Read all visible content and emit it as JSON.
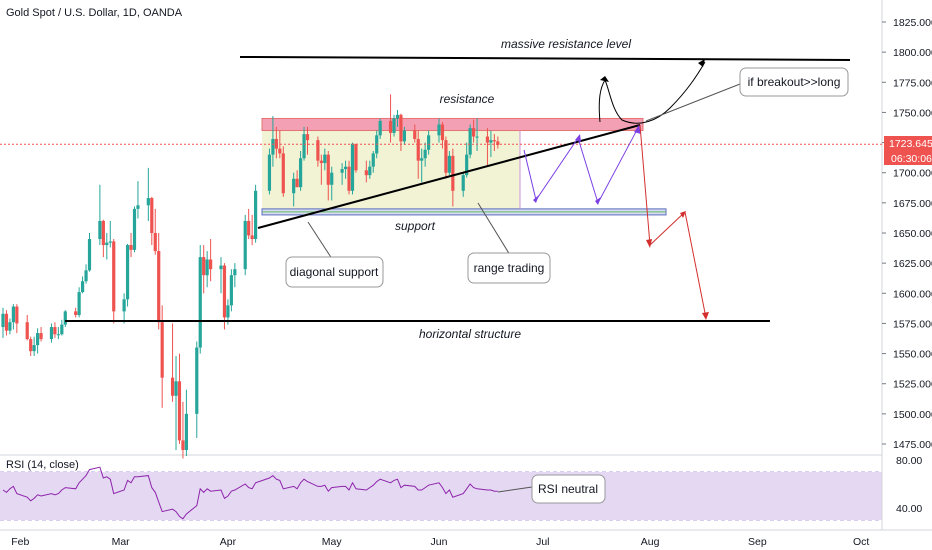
{
  "header": {
    "title": "Gold Spot / U.S. Dollar, 1D, OANDA"
  },
  "price_axis": {
    "ticks": [
      "1825.000",
      "1800.000",
      "1775.000",
      "1750.000",
      "1725.000",
      "1700.000",
      "1675.000",
      "1650.000",
      "1625.000",
      "1600.000",
      "1575.000",
      "1550.000",
      "1525.000",
      "1500.000",
      "1475.000"
    ],
    "current_price": "1723.645",
    "countdown": "06:30:06",
    "range": [
      1464,
      1840
    ]
  },
  "rsi_pane": {
    "label": "RSI (14, close)",
    "ticks": [
      "80.00",
      "40.00"
    ],
    "band": [
      30,
      70
    ]
  },
  "time_axis": {
    "labels": [
      "Feb",
      "Mar",
      "Apr",
      "May",
      "Jun",
      "Jul",
      "Aug",
      "Sep",
      "Oct"
    ],
    "start_date": "2020-01-27",
    "end_date": "2020-10-05"
  },
  "annotations": {
    "massive_resistance": "massive resistance level",
    "resistance": "resistance",
    "support": "support",
    "horizontal_structure": "horizontal structure",
    "diagonal_support": "diagonal support",
    "range_trading": "range trading",
    "breakout": "if breakout>>long",
    "rsi_neutral": "RSI neutral"
  },
  "colors": {
    "up": "#26a69a",
    "down": "#ef5350",
    "dark": "#000000",
    "resistance_zone": "#f4a0b4",
    "range_box": "#f1f3d4",
    "support_zone": "#d5dcef",
    "rsi_band": "#e4d8f3",
    "rsi_line": "#8e24aa",
    "price_line": "#ef5350",
    "purple_path": "#7b3fe4",
    "red_path": "#d32f2f"
  },
  "chart_data": {
    "type": "candlestick",
    "title": "Gold Spot / U.S. Dollar, 1D, OANDA",
    "ylim": [
      1464,
      1840
    ],
    "candles": [
      {
        "date": "2020-01-27",
        "o": 1572,
        "h": 1588,
        "l": 1563,
        "c": 1583
      },
      {
        "date": "2020-01-28",
        "o": 1583,
        "h": 1586,
        "l": 1565,
        "c": 1569
      },
      {
        "date": "2020-01-29",
        "o": 1569,
        "h": 1579,
        "l": 1566,
        "c": 1576
      },
      {
        "date": "2020-01-30",
        "o": 1576,
        "h": 1591,
        "l": 1570,
        "c": 1589
      },
      {
        "date": "2020-01-31",
        "o": 1589,
        "h": 1591,
        "l": 1567,
        "c": 1575
      },
      {
        "date": "2020-02-03",
        "o": 1576,
        "h": 1582,
        "l": 1561,
        "c": 1562
      },
      {
        "date": "2020-02-04",
        "o": 1562,
        "h": 1564,
        "l": 1548,
        "c": 1552
      },
      {
        "date": "2020-02-05",
        "o": 1552,
        "h": 1564,
        "l": 1548,
        "c": 1557
      },
      {
        "date": "2020-02-06",
        "o": 1557,
        "h": 1571,
        "l": 1550,
        "c": 1567
      },
      {
        "date": "2020-02-07",
        "o": 1567,
        "h": 1572,
        "l": 1560,
        "c": 1562
      },
      {
        "date": "2020-02-10",
        "o": 1562,
        "h": 1575,
        "l": 1559,
        "c": 1572
      },
      {
        "date": "2020-02-11",
        "o": 1572,
        "h": 1576,
        "l": 1563,
        "c": 1566
      },
      {
        "date": "2020-02-12",
        "o": 1566,
        "h": 1572,
        "l": 1562,
        "c": 1566
      },
      {
        "date": "2020-02-13",
        "o": 1566,
        "h": 1578,
        "l": 1565,
        "c": 1574
      },
      {
        "date": "2020-02-14",
        "o": 1574,
        "h": 1586,
        "l": 1572,
        "c": 1585
      },
      {
        "date": "2020-02-17",
        "o": 1585,
        "h": 1588,
        "l": 1580,
        "c": 1582
      },
      {
        "date": "2020-02-18",
        "o": 1582,
        "h": 1605,
        "l": 1580,
        "c": 1601
      },
      {
        "date": "2020-02-19",
        "o": 1601,
        "h": 1614,
        "l": 1600,
        "c": 1610
      },
      {
        "date": "2020-02-20",
        "o": 1610,
        "h": 1624,
        "l": 1608,
        "c": 1619
      },
      {
        "date": "2020-02-21",
        "o": 1619,
        "h": 1650,
        "l": 1618,
        "c": 1645
      },
      {
        "date": "2020-02-24",
        "o": 1645,
        "h": 1690,
        "l": 1640,
        "c": 1660
      },
      {
        "date": "2020-02-25",
        "o": 1660,
        "h": 1661,
        "l": 1630,
        "c": 1640
      },
      {
        "date": "2020-02-26",
        "o": 1640,
        "h": 1650,
        "l": 1628,
        "c": 1642
      },
      {
        "date": "2020-02-27",
        "o": 1642,
        "h": 1660,
        "l": 1638,
        "c": 1643
      },
      {
        "date": "2020-02-28",
        "o": 1643,
        "h": 1645,
        "l": 1575,
        "c": 1585
      },
      {
        "date": "2020-03-02",
        "o": 1585,
        "h": 1600,
        "l": 1575,
        "c": 1595
      },
      {
        "date": "2020-03-03",
        "o": 1595,
        "h": 1641,
        "l": 1589,
        "c": 1640
      },
      {
        "date": "2020-03-04",
        "o": 1640,
        "h": 1650,
        "l": 1630,
        "c": 1636
      },
      {
        "date": "2020-03-05",
        "o": 1636,
        "h": 1672,
        "l": 1634,
        "c": 1670
      },
      {
        "date": "2020-03-06",
        "o": 1670,
        "h": 1693,
        "l": 1662,
        "c": 1673
      },
      {
        "date": "2020-03-09",
        "o": 1673,
        "h": 1704,
        "l": 1660,
        "c": 1679
      },
      {
        "date": "2020-03-10",
        "o": 1679,
        "h": 1680,
        "l": 1640,
        "c": 1650
      },
      {
        "date": "2020-03-11",
        "o": 1650,
        "h": 1670,
        "l": 1632,
        "c": 1635
      },
      {
        "date": "2020-03-12",
        "o": 1635,
        "h": 1650,
        "l": 1570,
        "c": 1576
      },
      {
        "date": "2020-03-13",
        "o": 1576,
        "h": 1590,
        "l": 1505,
        "c": 1530
      },
      {
        "date": "2020-03-16",
        "o": 1530,
        "h": 1575,
        "l": 1510,
        "c": 1515
      },
      {
        "date": "2020-03-17",
        "o": 1515,
        "h": 1548,
        "l": 1470,
        "c": 1527
      },
      {
        "date": "2020-03-18",
        "o": 1527,
        "h": 1550,
        "l": 1475,
        "c": 1478
      },
      {
        "date": "2020-03-19",
        "o": 1478,
        "h": 1510,
        "l": 1463,
        "c": 1470
      },
      {
        "date": "2020-03-20",
        "o": 1470,
        "h": 1520,
        "l": 1465,
        "c": 1500
      },
      {
        "date": "2020-03-23",
        "o": 1500,
        "h": 1560,
        "l": 1480,
        "c": 1555
      },
      {
        "date": "2020-03-24",
        "o": 1555,
        "h": 1640,
        "l": 1550,
        "c": 1630
      },
      {
        "date": "2020-03-25",
        "o": 1630,
        "h": 1640,
        "l": 1600,
        "c": 1615
      },
      {
        "date": "2020-03-26",
        "o": 1615,
        "h": 1635,
        "l": 1605,
        "c": 1628
      },
      {
        "date": "2020-03-27",
        "o": 1628,
        "h": 1645,
        "l": 1610,
        "c": 1620
      },
      {
        "date": "2020-03-30",
        "o": 1620,
        "h": 1630,
        "l": 1600,
        "c": 1623
      },
      {
        "date": "2020-03-31",
        "o": 1623,
        "h": 1625,
        "l": 1570,
        "c": 1580
      },
      {
        "date": "2020-04-01",
        "o": 1580,
        "h": 1595,
        "l": 1574,
        "c": 1590
      },
      {
        "date": "2020-04-02",
        "o": 1590,
        "h": 1620,
        "l": 1585,
        "c": 1615
      },
      {
        "date": "2020-04-03",
        "o": 1615,
        "h": 1625,
        "l": 1605,
        "c": 1620
      },
      {
        "date": "2020-04-06",
        "o": 1620,
        "h": 1665,
        "l": 1615,
        "c": 1660
      },
      {
        "date": "2020-04-07",
        "o": 1660,
        "h": 1670,
        "l": 1645,
        "c": 1648
      },
      {
        "date": "2020-04-08",
        "o": 1648,
        "h": 1665,
        "l": 1640,
        "c": 1645
      },
      {
        "date": "2020-04-09",
        "o": 1645,
        "h": 1690,
        "l": 1642,
        "c": 1685
      },
      {
        "date": "2020-04-13",
        "o": 1685,
        "h": 1720,
        "l": 1682,
        "c": 1715
      },
      {
        "date": "2020-04-14",
        "o": 1715,
        "h": 1747,
        "l": 1705,
        "c": 1728
      },
      {
        "date": "2020-04-15",
        "o": 1728,
        "h": 1738,
        "l": 1712,
        "c": 1720
      },
      {
        "date": "2020-04-16",
        "o": 1720,
        "h": 1735,
        "l": 1712,
        "c": 1716
      },
      {
        "date": "2020-04-17",
        "o": 1716,
        "h": 1722,
        "l": 1680,
        "c": 1683
      },
      {
        "date": "2020-04-20",
        "o": 1683,
        "h": 1700,
        "l": 1672,
        "c": 1695
      },
      {
        "date": "2020-04-21",
        "o": 1695,
        "h": 1702,
        "l": 1688,
        "c": 1688
      },
      {
        "date": "2020-04-22",
        "o": 1688,
        "h": 1718,
        "l": 1685,
        "c": 1712
      },
      {
        "date": "2020-04-23",
        "o": 1712,
        "h": 1738,
        "l": 1710,
        "c": 1732
      },
      {
        "date": "2020-04-24",
        "o": 1732,
        "h": 1738,
        "l": 1715,
        "c": 1727
      },
      {
        "date": "2020-04-27",
        "o": 1727,
        "h": 1730,
        "l": 1705,
        "c": 1710
      },
      {
        "date": "2020-04-28",
        "o": 1710,
        "h": 1715,
        "l": 1690,
        "c": 1708
      },
      {
        "date": "2020-04-29",
        "o": 1708,
        "h": 1720,
        "l": 1702,
        "c": 1715
      },
      {
        "date": "2020-04-30",
        "o": 1715,
        "h": 1718,
        "l": 1677,
        "c": 1690
      },
      {
        "date": "2020-05-01",
        "o": 1690,
        "h": 1705,
        "l": 1677,
        "c": 1700
      },
      {
        "date": "2020-05-04",
        "o": 1700,
        "h": 1708,
        "l": 1690,
        "c": 1703
      },
      {
        "date": "2020-05-05",
        "o": 1703,
        "h": 1710,
        "l": 1695,
        "c": 1705
      },
      {
        "date": "2020-05-06",
        "o": 1705,
        "h": 1710,
        "l": 1682,
        "c": 1685
      },
      {
        "date": "2020-05-07",
        "o": 1685,
        "h": 1725,
        "l": 1682,
        "c": 1724
      },
      {
        "date": "2020-05-08",
        "o": 1724,
        "h": 1722,
        "l": 1700,
        "c": 1702
      },
      {
        "date": "2020-05-11",
        "o": 1702,
        "h": 1710,
        "l": 1692,
        "c": 1698
      },
      {
        "date": "2020-05-12",
        "o": 1698,
        "h": 1710,
        "l": 1695,
        "c": 1705
      },
      {
        "date": "2020-05-13",
        "o": 1705,
        "h": 1718,
        "l": 1700,
        "c": 1716
      },
      {
        "date": "2020-05-14",
        "o": 1716,
        "h": 1735,
        "l": 1712,
        "c": 1731
      },
      {
        "date": "2020-05-15",
        "o": 1731,
        "h": 1745,
        "l": 1728,
        "c": 1743
      },
      {
        "date": "2020-05-18",
        "o": 1743,
        "h": 1765,
        "l": 1725,
        "c": 1733
      },
      {
        "date": "2020-05-19",
        "o": 1733,
        "h": 1748,
        "l": 1730,
        "c": 1745
      },
      {
        "date": "2020-05-20",
        "o": 1745,
        "h": 1752,
        "l": 1738,
        "c": 1748
      },
      {
        "date": "2020-05-21",
        "o": 1748,
        "h": 1749,
        "l": 1718,
        "c": 1726
      },
      {
        "date": "2020-05-22",
        "o": 1726,
        "h": 1738,
        "l": 1723,
        "c": 1735
      },
      {
        "date": "2020-05-25",
        "o": 1735,
        "h": 1740,
        "l": 1725,
        "c": 1728
      },
      {
        "date": "2020-05-26",
        "o": 1728,
        "h": 1735,
        "l": 1695,
        "c": 1710
      },
      {
        "date": "2020-05-27",
        "o": 1710,
        "h": 1720,
        "l": 1692,
        "c": 1712
      },
      {
        "date": "2020-05-28",
        "o": 1712,
        "h": 1725,
        "l": 1705,
        "c": 1719
      },
      {
        "date": "2020-05-29",
        "o": 1719,
        "h": 1735,
        "l": 1715,
        "c": 1731
      },
      {
        "date": "2020-06-01",
        "o": 1731,
        "h": 1745,
        "l": 1725,
        "c": 1740
      },
      {
        "date": "2020-06-02",
        "o": 1740,
        "h": 1742,
        "l": 1720,
        "c": 1727
      },
      {
        "date": "2020-06-03",
        "o": 1727,
        "h": 1730,
        "l": 1695,
        "c": 1700
      },
      {
        "date": "2020-06-04",
        "o": 1700,
        "h": 1718,
        "l": 1698,
        "c": 1714
      },
      {
        "date": "2020-06-05",
        "o": 1714,
        "h": 1720,
        "l": 1672,
        "c": 1685
      },
      {
        "date": "2020-06-08",
        "o": 1685,
        "h": 1700,
        "l": 1680,
        "c": 1698
      },
      {
        "date": "2020-06-09",
        "o": 1698,
        "h": 1725,
        "l": 1696,
        "c": 1715
      },
      {
        "date": "2020-06-10",
        "o": 1715,
        "h": 1740,
        "l": 1712,
        "c": 1737
      },
      {
        "date": "2020-06-11",
        "o": 1737,
        "h": 1744,
        "l": 1725,
        "c": 1730
      },
      {
        "date": "2020-06-12",
        "o": 1730,
        "h": 1745,
        "l": 1718,
        "c": 1730
      },
      {
        "date": "2020-06-15",
        "o": 1730,
        "h": 1737,
        "l": 1705,
        "c": 1725
      },
      {
        "date": "2020-06-16",
        "o": 1725,
        "h": 1735,
        "l": 1713,
        "c": 1727
      },
      {
        "date": "2020-06-17",
        "o": 1727,
        "h": 1732,
        "l": 1718,
        "c": 1726
      },
      {
        "date": "2020-06-18",
        "o": 1726,
        "h": 1730,
        "l": 1720,
        "c": 1723
      }
    ],
    "rsi": [
      55,
      53,
      56,
      58,
      52,
      49,
      46,
      48,
      51,
      50,
      52,
      51,
      52,
      55,
      57,
      56,
      61,
      64,
      67,
      72,
      74,
      65,
      66,
      64,
      52,
      55,
      63,
      61,
      66,
      66,
      67,
      57,
      53,
      45,
      37,
      39,
      37,
      33,
      31,
      35,
      42,
      56,
      53,
      56,
      54,
      55,
      48,
      50,
      54,
      55,
      60,
      57,
      56,
      61,
      65,
      67,
      64,
      63,
      56,
      58,
      56,
      61,
      64,
      62,
      58,
      58,
      59,
      54,
      57,
      58,
      58,
      55,
      61,
      56,
      55,
      57,
      59,
      62,
      64,
      61,
      63,
      64,
      57,
      59,
      58,
      55,
      55,
      57,
      59,
      61,
      57,
      52,
      55,
      49,
      52,
      56,
      60,
      57,
      56,
      55,
      55,
      54,
      54
    ],
    "levels": {
      "massive_resistance": 1796,
      "resistance_zone": [
        1735,
        1745
      ],
      "support_zone": [
        1665,
        1670
      ],
      "horizontal_structure": 1577
    },
    "xlabel": "",
    "ylabel": ""
  }
}
